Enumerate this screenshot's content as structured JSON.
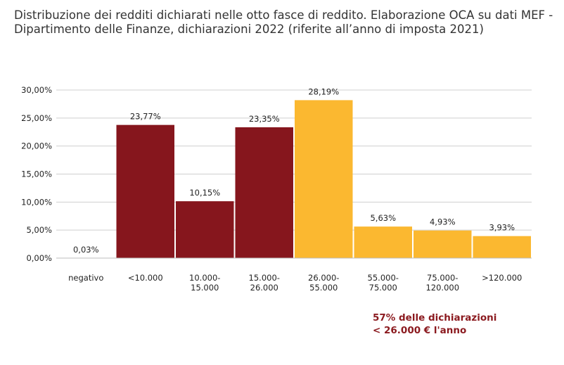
{
  "chart_data": {
    "type": "bar",
    "title": "Distribuzione dei redditi dichiarati nelle otto fasce di reddito. Elaborazione OCA su dati MEF - Dipartimento delle Finanze, dichiarazioni 2022 (riferite all’anno di imposta 2021)",
    "categories": [
      "negativo",
      "<10.000",
      "10.000-\n15.000",
      "15.000-\n26.000",
      "26.000-\n55.000",
      "55.000-\n75.000",
      "75.000-\n120.000",
      ">120.000"
    ],
    "values": [
      0.03,
      23.77,
      10.15,
      23.35,
      28.19,
      5.63,
      4.93,
      3.93
    ],
    "data_labels": [
      "0,03%",
      "23,77%",
      "10,15%",
      "23,35%",
      "28,19%",
      "5,63%",
      "4,93%",
      "3,93%"
    ],
    "yticks": [
      0,
      5,
      10,
      15,
      20,
      25,
      30
    ],
    "ytick_labels": [
      "0,00%",
      "5,00%",
      "10,00%",
      "15,00%",
      "20,00%",
      "25,00%",
      "30,00%"
    ],
    "ylim": [
      0,
      30
    ],
    "grid": true,
    "colors": [
      "#86161d",
      "#86161d",
      "#86161d",
      "#86161d",
      "#fbb830",
      "#fbb830",
      "#fbb830",
      "#fbb830"
    ],
    "xlabel": "",
    "ylabel": ""
  },
  "annotation": {
    "line1": "57% delle dichiarazioni",
    "line2": "< 26.000 € l'anno",
    "color": "#8b1a1f"
  }
}
